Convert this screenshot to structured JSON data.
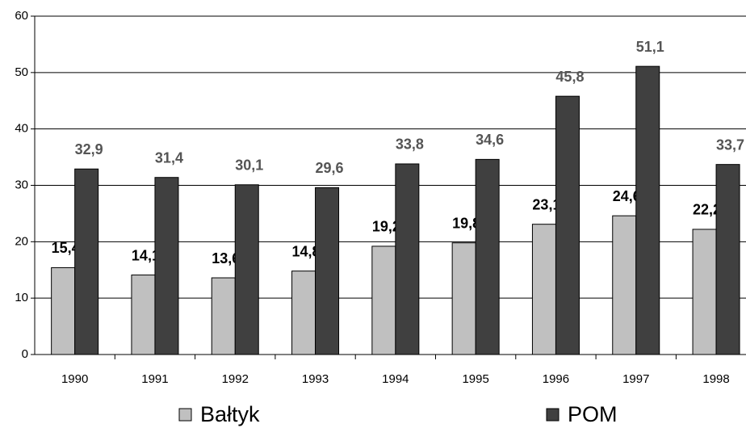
{
  "chart_data": {
    "type": "bar",
    "categories": [
      "1990",
      "1991",
      "1992",
      "1993",
      "1994",
      "1995",
      "1996",
      "1997",
      "1998"
    ],
    "series": [
      {
        "name": "Bałtyk",
        "color": "#c0c0c0",
        "label_color": "#000000",
        "values": [
          15.4,
          14.1,
          13.6,
          14.8,
          19.2,
          19.8,
          23.1,
          24.6,
          22.2
        ],
        "value_labels": [
          "15,4",
          "14,1",
          "13,6",
          "14,8",
          "19,2",
          "19,8",
          "23,1",
          "24,6",
          "22,2"
        ]
      },
      {
        "name": "POM",
        "color": "#404040",
        "label_color": "#555555",
        "values": [
          32.9,
          31.4,
          30.1,
          29.6,
          33.8,
          34.6,
          45.8,
          51.1,
          33.7
        ],
        "value_labels": [
          "32,9",
          "31,4",
          "30,1",
          "29,6",
          "33,8",
          "34,6",
          "45,8",
          "51,1",
          "33,7"
        ]
      }
    ],
    "ylim": [
      0,
      60
    ],
    "yticks": [
      0,
      10,
      20,
      30,
      40,
      50,
      60
    ],
    "grid": true
  }
}
